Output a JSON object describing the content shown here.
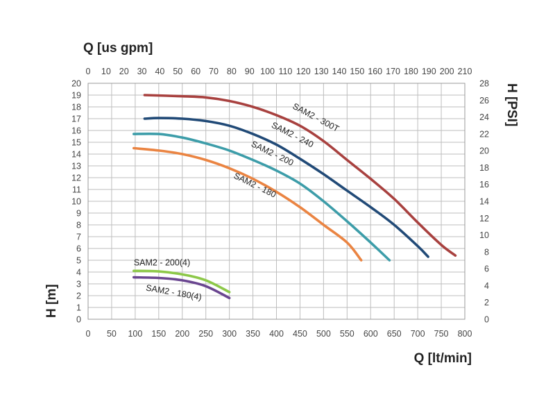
{
  "chart_data": {
    "type": "line",
    "title": "",
    "xlabel": "Q [lt/min]",
    "x2label": "Q [us gpm]",
    "ylabel": "H [m]",
    "y2label": "H [PSI]",
    "xlim": [
      0,
      800
    ],
    "ylim": [
      0,
      20
    ],
    "x2lim": [
      0,
      210
    ],
    "y2lim": [
      0,
      28
    ],
    "x_ticks": [
      "0",
      "50",
      "100",
      "150",
      "200",
      "250",
      "300",
      "350",
      "400",
      "450",
      "500",
      "550",
      "600",
      "650",
      "700",
      "750",
      "800"
    ],
    "x2_ticks": [
      "0",
      "10",
      "20",
      "30",
      "40",
      "50",
      "60",
      "70",
      "80",
      "90",
      "100",
      "110",
      "120",
      "130",
      "140",
      "150",
      "160",
      "170",
      "180",
      "190",
      "200",
      "210"
    ],
    "y_ticks": [
      "0",
      "1",
      "2",
      "3",
      "4",
      "5",
      "6",
      "7",
      "8",
      "9",
      "10",
      "11",
      "12",
      "13",
      "14",
      "15",
      "16",
      "17",
      "18",
      "19",
      "20"
    ],
    "y2_ticks": [
      "0",
      "2",
      "4",
      "6",
      "8",
      "10",
      "12",
      "14",
      "16",
      "18",
      "20",
      "22",
      "24",
      "26",
      "28"
    ],
    "grid": true,
    "series": [
      {
        "name": "SAM2 - 300T",
        "color": "#a8413f",
        "x": [
          120,
          200,
          250,
          300,
          350,
          400,
          450,
          500,
          550,
          600,
          650,
          700,
          750,
          780
        ],
        "y": [
          19.0,
          18.9,
          18.8,
          18.5,
          18.0,
          17.3,
          16.4,
          15.1,
          13.5,
          11.9,
          10.2,
          8.2,
          6.3,
          5.4
        ],
        "label": {
          "text": "SAM2 - 300T",
          "x": 433,
          "y": 17.9,
          "rotate": 28
        }
      },
      {
        "name": "SAM2 - 240",
        "color": "#214a77",
        "x": [
          120,
          150,
          200,
          250,
          300,
          350,
          400,
          450,
          500,
          550,
          600,
          650,
          700,
          722
        ],
        "y": [
          17.0,
          17.05,
          17.0,
          16.8,
          16.4,
          15.7,
          14.8,
          13.6,
          12.3,
          10.9,
          9.5,
          8.0,
          6.2,
          5.3
        ],
        "label": {
          "text": "SAM2 - 240",
          "x": 388,
          "y": 16.3,
          "rotate": 27
        }
      },
      {
        "name": "SAM2 - 200",
        "color": "#3d9da9",
        "x": [
          97,
          150,
          200,
          250,
          300,
          350,
          400,
          450,
          500,
          550,
          600,
          640
        ],
        "y": [
          15.7,
          15.7,
          15.4,
          14.9,
          14.3,
          13.5,
          12.6,
          11.5,
          10.0,
          8.3,
          6.5,
          5.0
        ],
        "label": {
          "text": "SAM2 - 200",
          "x": 345,
          "y": 14.7,
          "rotate": 26
        }
      },
      {
        "name": "SAM2 - 180",
        "color": "#ea8442",
        "x": [
          97,
          150,
          200,
          250,
          300,
          350,
          400,
          450,
          500,
          550,
          580
        ],
        "y": [
          14.5,
          14.3,
          14.0,
          13.5,
          12.8,
          11.9,
          10.8,
          9.5,
          8.0,
          6.5,
          5.0
        ],
        "label": {
          "text": "SAM2 - 180",
          "x": 308,
          "y": 12.0,
          "rotate": 26
        }
      },
      {
        "name": "SAM2 - 200(4)",
        "color": "#8dc849",
        "x": [
          97,
          150,
          200,
          250,
          300
        ],
        "y": [
          4.1,
          4.05,
          3.8,
          3.3,
          2.3
        ],
        "label": {
          "text": "SAM2 - 200(4)",
          "x": 97,
          "y": 4.55,
          "rotate": 0
        }
      },
      {
        "name": "SAM2 - 180(4)",
        "color": "#6a4690",
        "x": [
          97,
          150,
          200,
          250,
          300
        ],
        "y": [
          3.55,
          3.5,
          3.3,
          2.8,
          1.8
        ],
        "label": {
          "text": "SAM2 - 180(4)",
          "x": 122,
          "y": 2.45,
          "rotate": 10
        }
      }
    ]
  }
}
